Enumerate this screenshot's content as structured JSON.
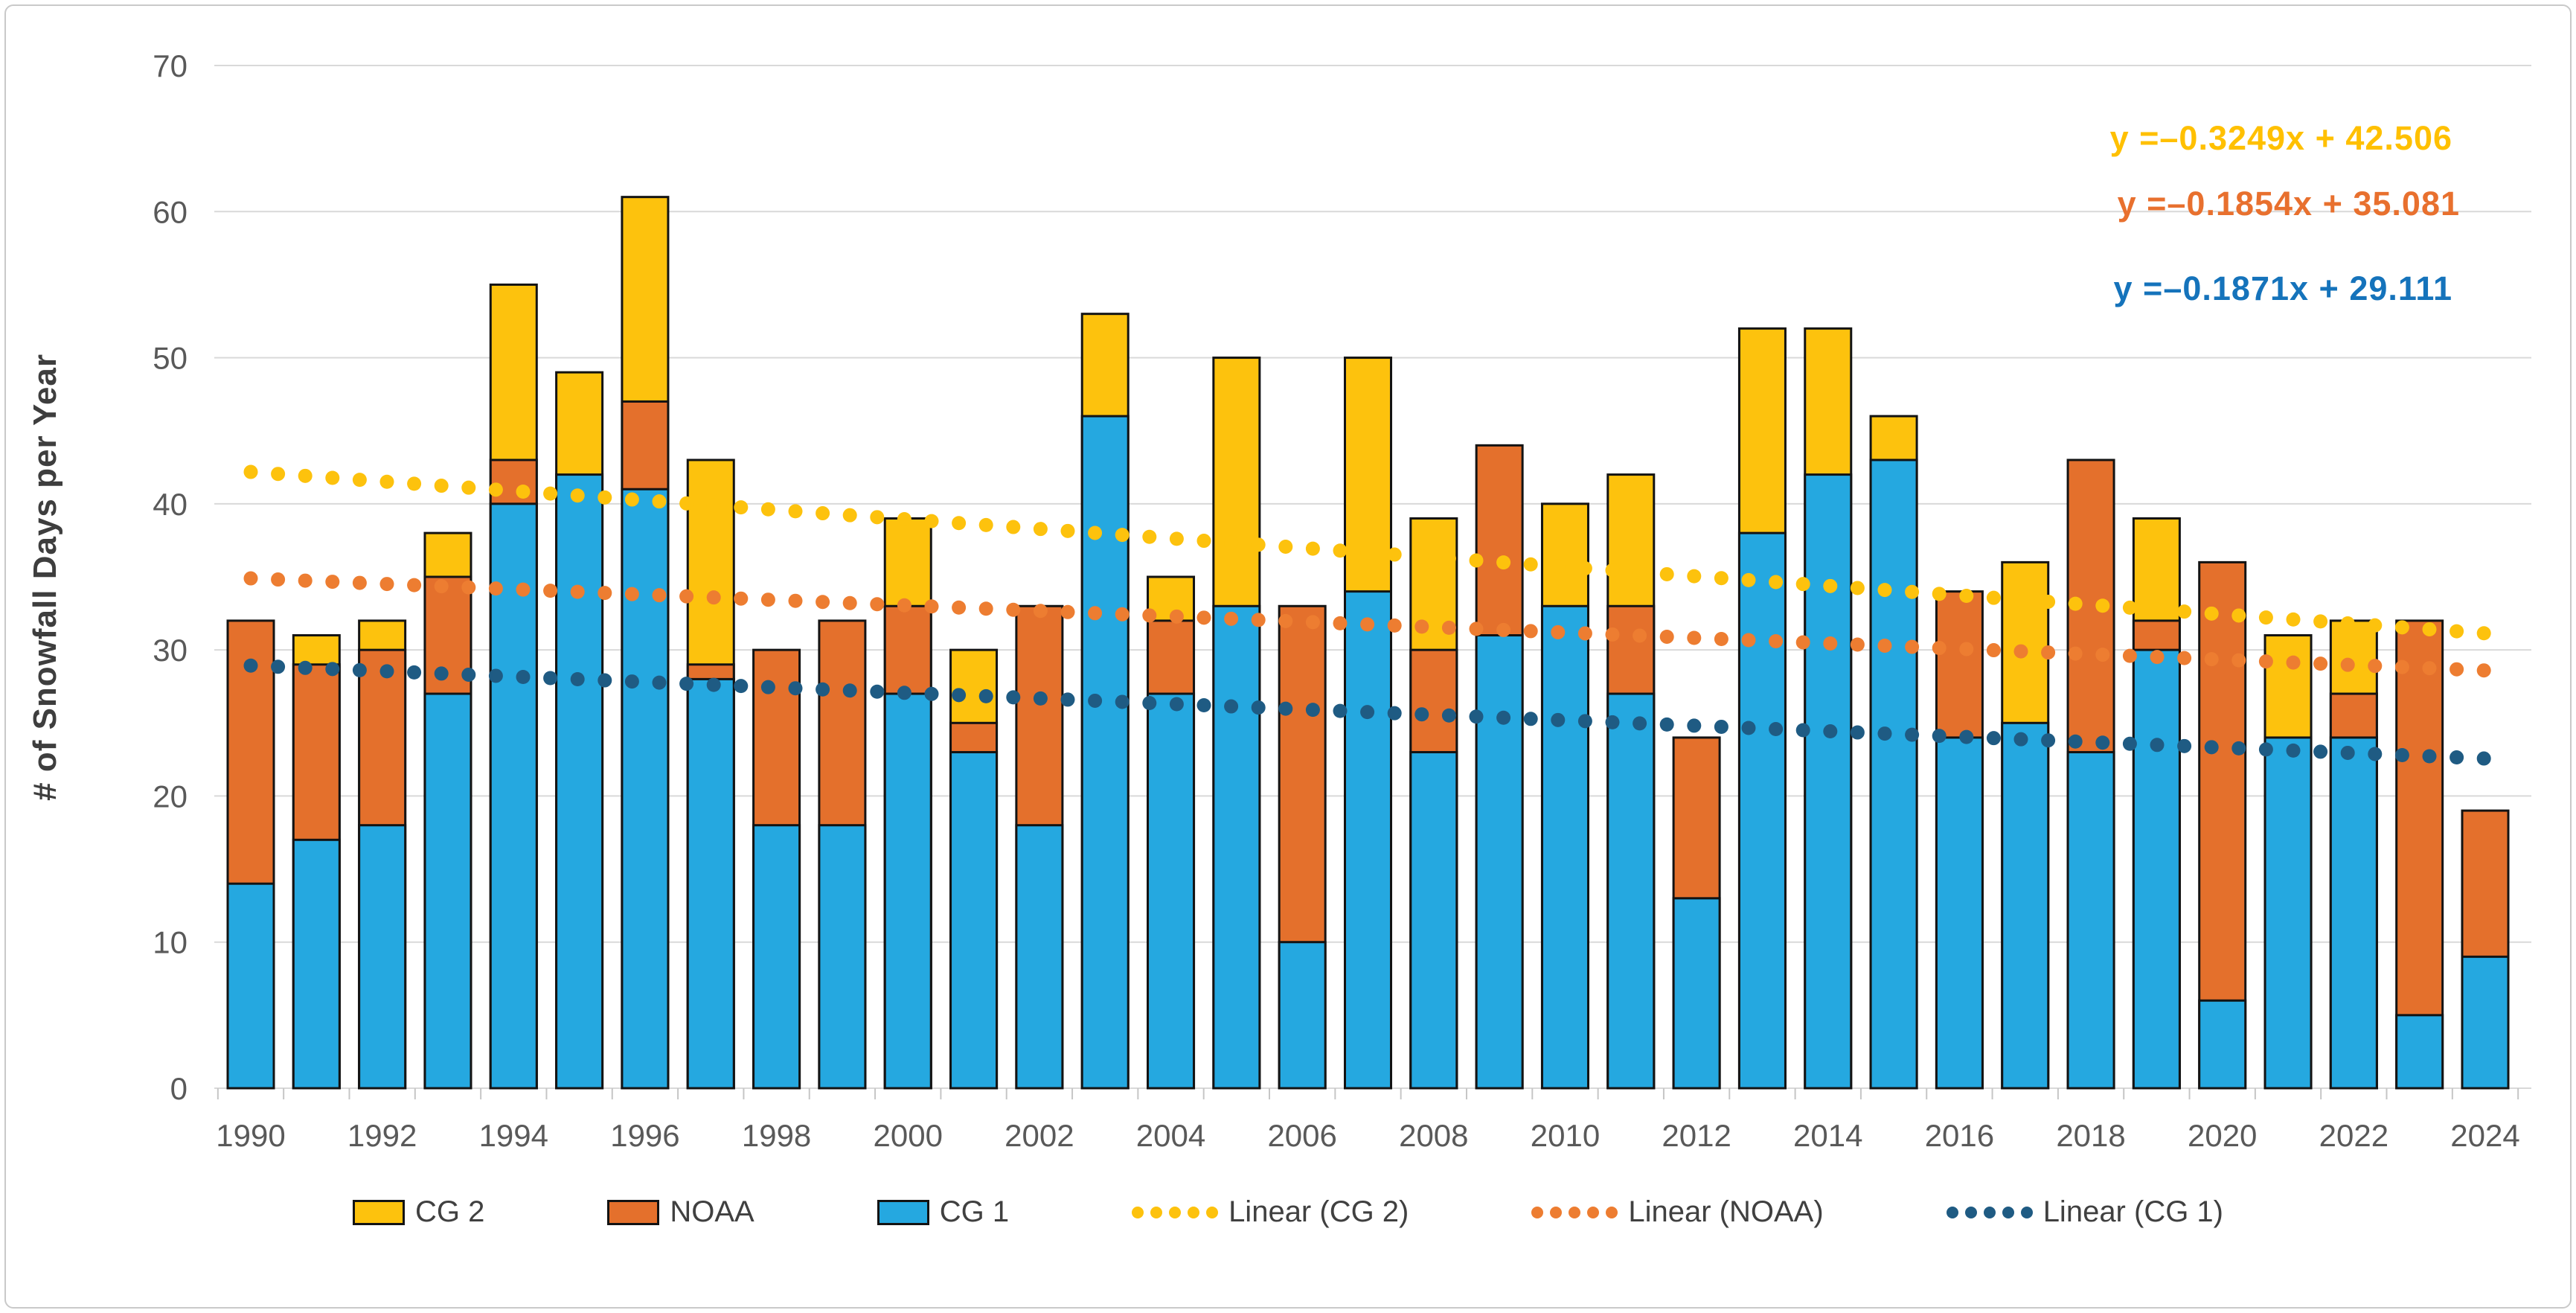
{
  "y_axis": {
    "title": "# of Snowfall Days per Year",
    "ticks": [
      0,
      10,
      20,
      30,
      40,
      50,
      60,
      70
    ],
    "max": 70
  },
  "x_axis": {
    "labels": [
      "1990",
      "1992",
      "1994",
      "1996",
      "1998",
      "2000",
      "2002",
      "2004",
      "2006",
      "2008",
      "2010",
      "2012",
      "2014",
      "2016",
      "2018",
      "2020",
      "2022",
      "2024"
    ]
  },
  "equations": [
    {
      "text": "y =–0.3249x + 42.506",
      "color": "#FFC000"
    },
    {
      "text": "y =–0.1854x + 35.081",
      "color": "#E8702E"
    },
    {
      "text": "y =–0.1871x + 29.111",
      "color": "#1573BB"
    }
  ],
  "legend": {
    "items": [
      {
        "label": "CG 2",
        "marker": "box",
        "color": "#FDC20D"
      },
      {
        "label": "NOAA",
        "marker": "box",
        "color": "#E4702C"
      },
      {
        "label": "CG 1",
        "marker": "box",
        "color": "#25A8E0"
      },
      {
        "label": "Linear (CG 2)",
        "marker": "dots",
        "color": "#FDC20D"
      },
      {
        "label": "Linear (NOAA)",
        "marker": "dots",
        "color": "#ED7D31"
      },
      {
        "label": "Linear (CG 1)",
        "marker": "dots",
        "color": "#1F5B83"
      }
    ]
  },
  "chart_data": {
    "type": "bar",
    "overlap": true,
    "title": "",
    "xlabel": "",
    "ylabel": "# of Snowfall Days per Year",
    "ylim": [
      0,
      70
    ],
    "grid": "horizontal",
    "legend_position": "bottom",
    "categories": [
      1990,
      1991,
      1992,
      1993,
      1994,
      1995,
      1996,
      1997,
      1998,
      1999,
      2000,
      2001,
      2002,
      2003,
      2004,
      2005,
      2006,
      2007,
      2008,
      2009,
      2010,
      2011,
      2012,
      2013,
      2014,
      2015,
      2016,
      2017,
      2018,
      2019,
      2020,
      2021,
      2022,
      2023,
      2024
    ],
    "series": [
      {
        "name": "CG 2",
        "color": "#FDC20D",
        "values": [
          null,
          31,
          32,
          38,
          55,
          49,
          61,
          43,
          null,
          null,
          39,
          30,
          null,
          53,
          35,
          50,
          null,
          50,
          39,
          null,
          40,
          42,
          null,
          52,
          52,
          46,
          null,
          36,
          null,
          39,
          null,
          31,
          32,
          null,
          null
        ]
      },
      {
        "name": "NOAA",
        "color": "#E4702C",
        "values": [
          32,
          29,
          30,
          35,
          43,
          null,
          47,
          29,
          30,
          32,
          33,
          25,
          33,
          null,
          32,
          null,
          33,
          null,
          30,
          44,
          null,
          33,
          24,
          null,
          null,
          null,
          34,
          null,
          43,
          32,
          36,
          null,
          27,
          32,
          19
        ]
      },
      {
        "name": "CG 1",
        "color": "#25A8E0",
        "values": [
          14,
          17,
          18,
          27,
          40,
          42,
          41,
          28,
          18,
          18,
          27,
          23,
          18,
          46,
          27,
          33,
          10,
          34,
          23,
          31,
          33,
          27,
          13,
          38,
          42,
          43,
          24,
          25,
          23,
          30,
          6,
          24,
          24,
          5,
          9
        ]
      }
    ],
    "trendlines": [
      {
        "name": "Linear (CG 2)",
        "equation": "y =–0.3249x + 42.506",
        "slope": -0.3249,
        "intercept": 42.506,
        "color": "#FDC20D"
      },
      {
        "name": "Linear (NOAA)",
        "equation": "y =–0.1854x + 35.081",
        "slope": -0.1854,
        "intercept": 35.081,
        "color": "#ED7D31"
      },
      {
        "name": "Linear (CG 1)",
        "equation": "y =–0.1871x + 29.111",
        "slope": -0.1871,
        "intercept": 29.111,
        "color": "#1F5B83"
      }
    ]
  }
}
